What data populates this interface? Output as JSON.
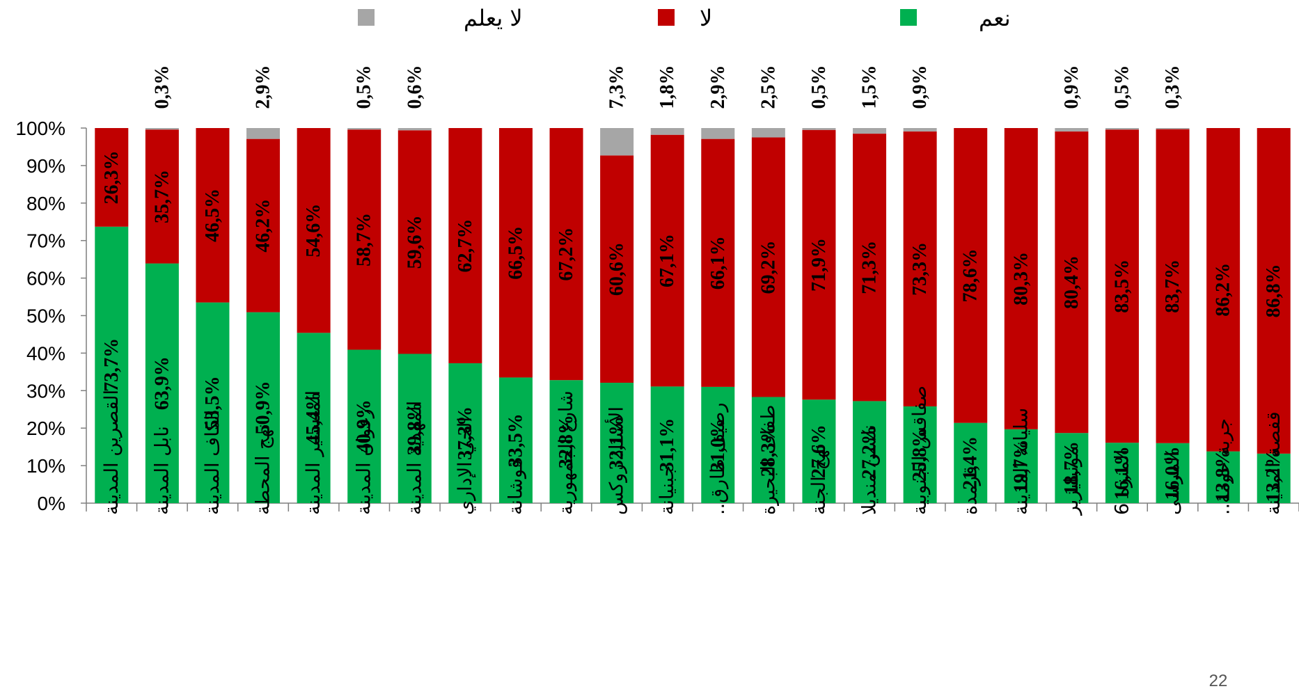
{
  "page_number": "22",
  "legend": {
    "items": [
      {
        "label": "نعم",
        "color": "#00b050"
      },
      {
        "label": "لا",
        "color": "#c00000"
      },
      {
        "label": "لا يعلم",
        "color": "#a6a6a6"
      }
    ]
  },
  "chart_data": {
    "type": "bar",
    "stacked": true,
    "percent_stacked": true,
    "ylim": [
      0,
      100
    ],
    "yticks": [
      "0%",
      "10%",
      "20%",
      "30%",
      "40%",
      "50%",
      "60%",
      "70%",
      "80%",
      "90%",
      "100%"
    ],
    "grid": false,
    "legend_position": "top",
    "categories": [
      "القصرين المدينة",
      "نابل المدينة",
      "الكاف المدينة",
      "نهج المحطة",
      "المنستير المدينة",
      "زغوان المدينة",
      "المهدية المدينة",
      "الحي الإداري",
      "فوشانة",
      "شارع الجمهورية",
      "الأستاذ روكس",
      "جبنيانة",
      "رصيف طارق..",
      "طفاف البحيرة",
      "نهج الجنة",
      "نلسن منديلا",
      "صفاقس الجنوبية",
      "قرمدة",
      "سليانة المدينة",
      "مونبليزير",
      "المنزه 6",
      "المرسى",
      "جربة حومة..",
      "قفصة المدينة"
    ],
    "series": [
      {
        "name": "نعم",
        "color": "#00b050",
        "values": [
          73.7,
          63.9,
          53.5,
          50.9,
          45.4,
          40.9,
          39.8,
          37.3,
          33.5,
          32.8,
          32.1,
          31.1,
          31.0,
          28.3,
          27.6,
          27.2,
          25.8,
          21.4,
          19.7,
          18.7,
          16.1,
          16.0,
          13.8,
          13.2
        ],
        "labels": [
          "73,7%",
          "63,9%",
          "53,5%",
          "50,9%",
          "45,4%",
          "40,9%",
          "39,8%",
          "37,3%",
          "33,5%",
          "32,8%",
          "32,1%",
          "31,1%",
          "31,0%",
          "28,3%",
          "27,6%",
          "27,2%",
          "25,8%",
          "21,4%",
          "19,7%",
          "18,7%",
          "16,1%",
          "16,0%",
          "13,8%",
          "13,2%"
        ]
      },
      {
        "name": "لا",
        "color": "#c00000",
        "values": [
          26.3,
          35.7,
          46.5,
          46.2,
          54.6,
          58.7,
          59.6,
          62.7,
          66.5,
          67.2,
          60.6,
          67.1,
          66.1,
          69.2,
          71.9,
          71.3,
          73.3,
          78.6,
          80.3,
          80.4,
          83.5,
          83.7,
          86.2,
          86.8
        ],
        "labels": [
          "26,3%",
          "35,7%",
          "46,5%",
          "46,2%",
          "54,6%",
          "58,7%",
          "59,6%",
          "62,7%",
          "66,5%",
          "67,2%",
          "60,6%",
          "67,1%",
          "66,1%",
          "69,2%",
          "71,9%",
          "71,3%",
          "73,3%",
          "78,6%",
          "80,3%",
          "80,4%",
          "83,5%",
          "83,7%",
          "86,2%",
          "86,8%"
        ]
      },
      {
        "name": "لا يعلم",
        "color": "#a6a6a6",
        "values": [
          0,
          0.3,
          0,
          2.9,
          0,
          0.5,
          0.6,
          0,
          0,
          0,
          7.3,
          1.8,
          2.9,
          2.5,
          0.5,
          1.5,
          0.9,
          0,
          0,
          0.9,
          0.5,
          0.3,
          0,
          0
        ],
        "labels": [
          "",
          "0,3%",
          "",
          "2,9%",
          "",
          "0,5%",
          "0,6%",
          "",
          "",
          "",
          "7,3%",
          "1,8%",
          "2,9%",
          "2,5%",
          "0,5%",
          "1,5%",
          "0,9%",
          "",
          "",
          "0,9%",
          "0,5%",
          "0,3%",
          "",
          ""
        ]
      }
    ]
  }
}
